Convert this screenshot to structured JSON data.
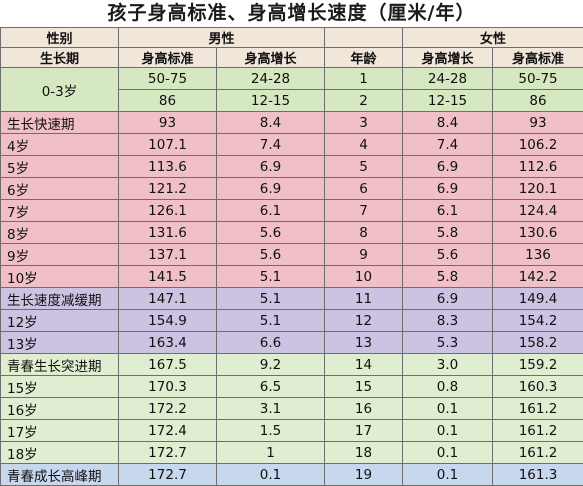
{
  "title": "孩子身高标准、身高增长速度（厘米/年）",
  "header": {
    "gender_label": "性别",
    "male": "男性",
    "female": "女性",
    "period": "生长期",
    "height_std": "身高标准",
    "height_inc": "身高增长",
    "age": "年龄"
  },
  "first_group": {
    "label": "0-3岁",
    "rows": [
      {
        "m_std": "50-75",
        "m_inc": "24-28",
        "age": "1",
        "f_inc": "24-28",
        "f_std": "50-75"
      },
      {
        "m_std": "86",
        "m_inc": "12-15",
        "age": "2",
        "f_inc": "12-15",
        "f_std": "86"
      }
    ]
  },
  "rows": [
    {
      "label": "生长快速期",
      "m_std": "93",
      "m_inc": "8.4",
      "age": "3",
      "f_inc": "8.4",
      "f_std": "93",
      "band": "pink",
      "align": "left"
    },
    {
      "label": "4岁",
      "m_std": "107.1",
      "m_inc": "7.4",
      "age": "4",
      "f_inc": "7.4",
      "f_std": "106.2",
      "band": "pink",
      "align": "left"
    },
    {
      "label": "5岁",
      "m_std": "113.6",
      "m_inc": "6.9",
      "age": "5",
      "f_inc": "6.9",
      "f_std": "112.6",
      "band": "pink",
      "align": "left"
    },
    {
      "label": "6岁",
      "m_std": "121.2",
      "m_inc": "6.9",
      "age": "6",
      "f_inc": "6.9",
      "f_std": "120.1",
      "band": "pink",
      "align": "left"
    },
    {
      "label": "7岁",
      "m_std": "126.1",
      "m_inc": "6.1",
      "age": "7",
      "f_inc": "6.1",
      "f_std": "124.4",
      "band": "pink",
      "align": "left"
    },
    {
      "label": "8岁",
      "m_std": "131.6",
      "m_inc": "5.6",
      "age": "8",
      "f_inc": "5.8",
      "f_std": "130.6",
      "band": "pink",
      "align": "left"
    },
    {
      "label": "9岁",
      "m_std": "137.1",
      "m_inc": "5.6",
      "age": "9",
      "f_inc": "5.6",
      "f_std": "136",
      "band": "pink",
      "align": "left"
    },
    {
      "label": "10岁",
      "m_std": "141.5",
      "m_inc": "5.1",
      "age": "10",
      "f_inc": "5.8",
      "f_std": "142.2",
      "band": "pink",
      "align": "left"
    },
    {
      "label": "生长速度减缓期",
      "m_std": "147.1",
      "m_inc": "5.1",
      "age": "11",
      "f_inc": "6.9",
      "f_std": "149.4",
      "band": "purple",
      "align": "left"
    },
    {
      "label": "12岁",
      "m_std": "154.9",
      "m_inc": "5.1",
      "age": "12",
      "f_inc": "8.3",
      "f_std": "154.2",
      "band": "purple",
      "align": "left"
    },
    {
      "label": "13岁",
      "m_std": "163.4",
      "m_inc": "6.6",
      "age": "13",
      "f_inc": "5.3",
      "f_std": "158.2",
      "band": "purple",
      "align": "left"
    },
    {
      "label": "青春生长突进期",
      "m_std": "167.5",
      "m_inc": "9.2",
      "age": "14",
      "f_inc": "3.0",
      "f_std": "159.2",
      "band": "lgreen",
      "align": "left"
    },
    {
      "label": "15岁",
      "m_std": "170.3",
      "m_inc": "6.5",
      "age": "15",
      "f_inc": "0.8",
      "f_std": "160.3",
      "band": "lgreen",
      "align": "left"
    },
    {
      "label": "16岁",
      "m_std": "172.2",
      "m_inc": "3.1",
      "age": "16",
      "f_inc": "0.1",
      "f_std": "161.2",
      "band": "lgreen",
      "align": "left"
    },
    {
      "label": "17岁",
      "m_std": "172.4",
      "m_inc": "1.5",
      "age": "17",
      "f_inc": "0.1",
      "f_std": "161.2",
      "band": "lgreen",
      "align": "left"
    },
    {
      "label": "18岁",
      "m_std": "172.7",
      "m_inc": "1",
      "age": "18",
      "f_inc": "0.1",
      "f_std": "161.2",
      "band": "lgreen",
      "align": "left"
    },
    {
      "label": "青春成长高峰期",
      "m_std": "172.7",
      "m_inc": "0.1",
      "age": "19",
      "f_inc": "0.1",
      "f_std": "161.3",
      "band": "blue",
      "align": "left"
    }
  ]
}
